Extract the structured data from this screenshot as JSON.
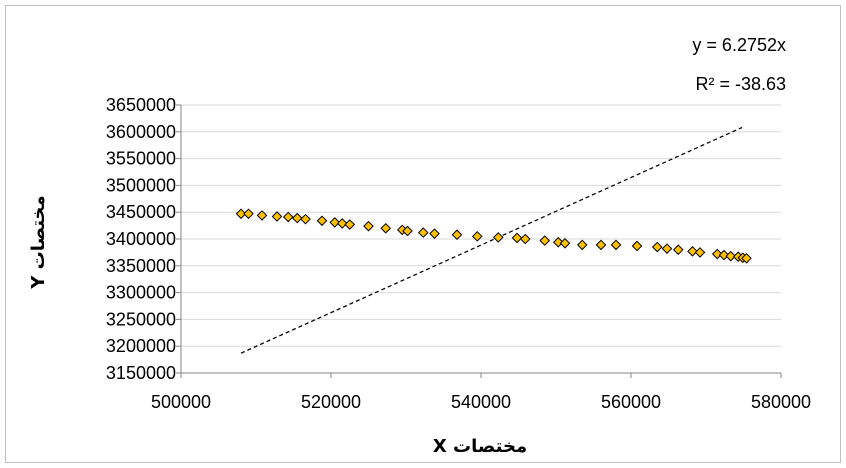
{
  "chart_data": {
    "type": "scatter",
    "title": "",
    "xlabel": "مختصات X",
    "ylabel": "مختصات Y",
    "xlim": [
      500000,
      580000
    ],
    "ylim": [
      3150000,
      3650000
    ],
    "x_ticks": [
      "500000",
      "520000",
      "540000",
      "560000",
      "580000"
    ],
    "y_ticks": [
      "3150000",
      "3200000",
      "3250000",
      "3300000",
      "3350000",
      "3400000",
      "3450000",
      "3500000",
      "3550000",
      "3600000",
      "3650000"
    ],
    "grid": "horizontal",
    "marker": "diamond",
    "marker_color": "#FFC000",
    "marker_edge": "#000000",
    "series": [
      {
        "x": [
          508000,
          509000,
          510800,
          512800,
          514300,
          515500,
          516600,
          518800,
          520500,
          521500,
          522500,
          525000,
          527300,
          529500,
          530200,
          532300,
          533800,
          536800,
          539500,
          542300,
          544800,
          545900,
          548500,
          550300,
          551200,
          553500,
          556000,
          558000,
          560800,
          563500,
          564800,
          566300,
          568200,
          569200,
          571500,
          572400,
          573300,
          574300,
          574900,
          575400
        ],
        "y": [
          3447000,
          3447000,
          3444000,
          3442000,
          3441000,
          3439000,
          3437000,
          3434000,
          3431000,
          3429000,
          3427000,
          3424000,
          3420000,
          3417000,
          3415000,
          3412000,
          3410000,
          3408000,
          3405000,
          3403000,
          3402000,
          3400000,
          3397000,
          3394000,
          3392000,
          3389000,
          3389000,
          3389000,
          3387000,
          3385000,
          3382000,
          3380000,
          3377000,
          3375000,
          3372000,
          3370000,
          3368000,
          3367000,
          3365000,
          3364000
        ]
      }
    ],
    "trendline": {
      "x_range": [
        508000,
        574800
      ],
      "y_range": [
        3187000,
        3608000
      ],
      "style": "dashed",
      "equation": "y = 6.2752x",
      "r_squared": "R² = -38.63"
    }
  }
}
